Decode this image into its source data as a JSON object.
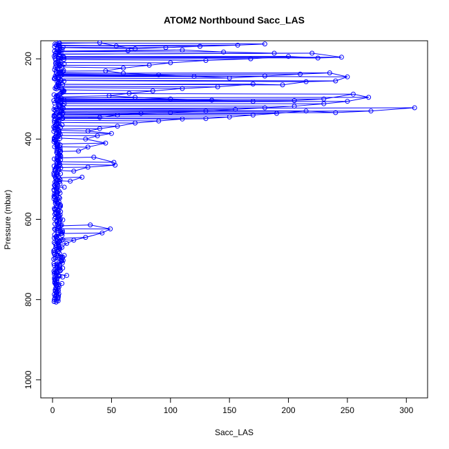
{
  "chart_data": {
    "type": "scatter",
    "title": "ATOM2 Northbound Sacc_LAS",
    "xlabel": "Sacc_LAS",
    "ylabel": "Pressure (mbar)",
    "xlim": [
      -10,
      318
    ],
    "ylim": [
      1045,
      155
    ],
    "y_reversed": true,
    "xticks": [
      0,
      50,
      100,
      150,
      200,
      250,
      300
    ],
    "yticks": [
      200,
      400,
      600,
      800,
      1000
    ],
    "series_color": "#0000ff",
    "marker": "open-circle",
    "connected": true,
    "outliers": [
      {
        "x": 180,
        "y": 163
      },
      {
        "x": 157,
        "y": 166
      },
      {
        "x": 125,
        "y": 169
      },
      {
        "x": 96,
        "y": 172
      },
      {
        "x": 70,
        "y": 175
      },
      {
        "x": 54,
        "y": 168
      },
      {
        "x": 40,
        "y": 160
      },
      {
        "x": 64,
        "y": 180
      },
      {
        "x": 110,
        "y": 178
      },
      {
        "x": 145,
        "y": 183
      },
      {
        "x": 188,
        "y": 186
      },
      {
        "x": 220,
        "y": 186
      },
      {
        "x": 245,
        "y": 196
      },
      {
        "x": 225,
        "y": 198
      },
      {
        "x": 200,
        "y": 194
      },
      {
        "x": 168,
        "y": 200
      },
      {
        "x": 130,
        "y": 204
      },
      {
        "x": 100,
        "y": 210
      },
      {
        "x": 82,
        "y": 216
      },
      {
        "x": 60,
        "y": 223
      },
      {
        "x": 45,
        "y": 230
      },
      {
        "x": 60,
        "y": 236
      },
      {
        "x": 90,
        "y": 240
      },
      {
        "x": 120,
        "y": 244
      },
      {
        "x": 150,
        "y": 248
      },
      {
        "x": 180,
        "y": 243
      },
      {
        "x": 210,
        "y": 238
      },
      {
        "x": 235,
        "y": 235
      },
      {
        "x": 250,
        "y": 245
      },
      {
        "x": 240,
        "y": 255
      },
      {
        "x": 215,
        "y": 257
      },
      {
        "x": 195,
        "y": 265
      },
      {
        "x": 170,
        "y": 263
      },
      {
        "x": 140,
        "y": 270
      },
      {
        "x": 110,
        "y": 274
      },
      {
        "x": 85,
        "y": 280
      },
      {
        "x": 65,
        "y": 286
      },
      {
        "x": 48,
        "y": 292
      },
      {
        "x": 70,
        "y": 296
      },
      {
        "x": 100,
        "y": 300
      },
      {
        "x": 135,
        "y": 303
      },
      {
        "x": 170,
        "y": 306
      },
      {
        "x": 205,
        "y": 304
      },
      {
        "x": 230,
        "y": 300
      },
      {
        "x": 255,
        "y": 288
      },
      {
        "x": 268,
        "y": 296
      },
      {
        "x": 250,
        "y": 306
      },
      {
        "x": 230,
        "y": 312
      },
      {
        "x": 205,
        "y": 318
      },
      {
        "x": 180,
        "y": 322
      },
      {
        "x": 155,
        "y": 326
      },
      {
        "x": 130,
        "y": 330
      },
      {
        "x": 100,
        "y": 334
      },
      {
        "x": 75,
        "y": 336
      },
      {
        "x": 55,
        "y": 340
      },
      {
        "x": 40,
        "y": 346
      },
      {
        "x": 307,
        "y": 322
      },
      {
        "x": 270,
        "y": 330
      },
      {
        "x": 240,
        "y": 334
      },
      {
        "x": 215,
        "y": 330
      },
      {
        "x": 190,
        "y": 336
      },
      {
        "x": 170,
        "y": 340
      },
      {
        "x": 150,
        "y": 345
      },
      {
        "x": 130,
        "y": 349
      },
      {
        "x": 110,
        "y": 350
      },
      {
        "x": 90,
        "y": 355
      },
      {
        "x": 70,
        "y": 360
      },
      {
        "x": 55,
        "y": 368
      },
      {
        "x": 40,
        "y": 374
      },
      {
        "x": 30,
        "y": 380
      },
      {
        "x": 50,
        "y": 386
      },
      {
        "x": 38,
        "y": 392
      },
      {
        "x": 28,
        "y": 400
      },
      {
        "x": 45,
        "y": 410
      },
      {
        "x": 30,
        "y": 420
      },
      {
        "x": 22,
        "y": 430
      },
      {
        "x": 35,
        "y": 445
      },
      {
        "x": 52,
        "y": 458
      },
      {
        "x": 53,
        "y": 465
      },
      {
        "x": 30,
        "y": 470
      },
      {
        "x": 18,
        "y": 480
      },
      {
        "x": 25,
        "y": 495
      },
      {
        "x": 15,
        "y": 505
      },
      {
        "x": 10,
        "y": 520
      },
      {
        "x": 32,
        "y": 614
      },
      {
        "x": 49,
        "y": 624
      },
      {
        "x": 42,
        "y": 634
      },
      {
        "x": 28,
        "y": 645
      },
      {
        "x": 18,
        "y": 652
      },
      {
        "x": 12,
        "y": 660
      },
      {
        "x": 8,
        "y": 670
      },
      {
        "x": 10,
        "y": 690
      },
      {
        "x": 6,
        "y": 720
      },
      {
        "x": 12,
        "y": 740
      },
      {
        "x": 8,
        "y": 760
      },
      {
        "x": 5,
        "y": 790
      }
    ]
  }
}
